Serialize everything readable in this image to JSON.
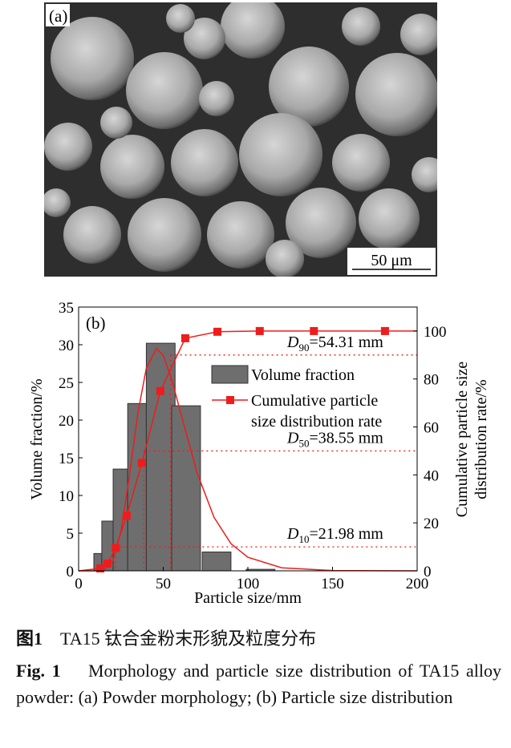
{
  "panel_a": {
    "label": "(a)",
    "scale_bar": "50 μm"
  },
  "chart_data": {
    "type": "bar",
    "panel_label": "(b)",
    "xlabel": "Particle size/mm",
    "ylabel": "Volume fraction/%",
    "y2label_line1": "Cumulative particle size",
    "y2label_line2": "distribution rate/%",
    "xlim": [
      0,
      200
    ],
    "ylim": [
      0,
      35
    ],
    "y2lim": [
      0,
      110
    ],
    "xticks": [
      "0",
      "50",
      "100",
      "150",
      "200"
    ],
    "yticks": [
      "0",
      "5",
      "10",
      "15",
      "20",
      "25",
      "30",
      "35"
    ],
    "y2ticks": [
      "0",
      "20",
      "40",
      "60",
      "80",
      "100"
    ],
    "bars": [
      {
        "x0": 9,
        "x1": 13.7,
        "value": 2.3
      },
      {
        "x0": 13.7,
        "x1": 20.4,
        "value": 6.6
      },
      {
        "x0": 20.4,
        "x1": 29,
        "value": 13.5
      },
      {
        "x0": 29,
        "x1": 40,
        "value": 22.2
      },
      {
        "x0": 40,
        "x1": 57,
        "value": 30.2
      },
      {
        "x0": 55,
        "x1": 72,
        "value": 21.9
      },
      {
        "x0": 73,
        "x1": 90,
        "value": 2.5
      },
      {
        "x0": 99,
        "x1": 116,
        "value": 0.2
      }
    ],
    "fit_curve": {
      "x": [
        0,
        10,
        15,
        20,
        25,
        30,
        35,
        40,
        46,
        50,
        55,
        60,
        70,
        80,
        90,
        100,
        120,
        150,
        200
      ],
      "y": [
        0,
        0,
        0.09,
        1.2,
        5.2,
        12.6,
        20.9,
        26.9,
        29.5,
        28.6,
        25.4,
        21.2,
        13.0,
        7.1,
        3.6,
        1.8,
        0.4,
        0.04,
        0
      ]
    },
    "series": [
      {
        "name": "Volume fraction",
        "type": "bar"
      },
      {
        "name": "Cumulative particle size distribution rate",
        "legend_line1": "Cumulative particle",
        "legend_line2": "size distribution rate",
        "axis": "right",
        "color": "#ee1c1c",
        "x": [
          0,
          12.8,
          17,
          22,
          28.4,
          37.4,
          48.3,
          63,
          82,
          107,
          139,
          181,
          200
        ],
        "y": [
          0,
          1,
          3,
          9.6,
          23,
          45,
          75,
          97,
          99.7,
          100,
          100,
          100,
          100
        ],
        "markers": [
          false,
          true,
          true,
          true,
          true,
          true,
          true,
          true,
          true,
          true,
          true,
          true,
          false
        ]
      }
    ],
    "annotations": [
      {
        "sub": "10",
        "text": "=21.98 mm",
        "x": 21.98,
        "y2": 10
      },
      {
        "sub": "50",
        "text": "=38.55 mm",
        "x": 38.55,
        "y2": 50
      },
      {
        "sub": "90",
        "text": "=54.31 mm",
        "x": 54.31,
        "y2": 90
      }
    ],
    "bar_color": "#6e6e6e",
    "legend_placement": "top-right"
  },
  "caption": {
    "cn_label": "图1",
    "cn_text": "TA15 钛合金粉末形貌及粒度分布",
    "en_label": "Fig. 1",
    "en_text": "Morphology and particle size distribution of TA15 alloy powder: (a) Powder morphology; (b) Particle size distribution"
  }
}
